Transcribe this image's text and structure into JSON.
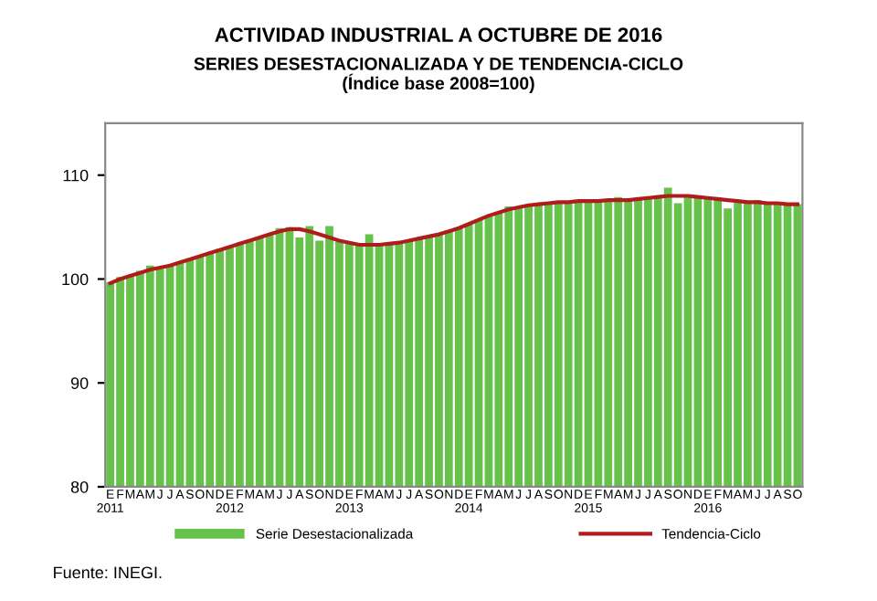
{
  "chart_data": {
    "type": "bar",
    "title": "ACTIVIDAD INDUSTRIAL A OCTUBRE DE 2016",
    "subtitle": "SERIES DESESTACIONALIZADA Y DE TENDENCIA-CICLO\n(Índice base 2008=100)",
    "categories": [
      "E\n2011",
      "F",
      "M",
      "A",
      "M",
      "J",
      "J",
      "A",
      "S",
      "O",
      "N",
      "D",
      "E\n2012",
      "F",
      "M",
      "A",
      "M",
      "J",
      "J",
      "A",
      "S",
      "O",
      "N",
      "D",
      "E\n2013",
      "F",
      "M",
      "A",
      "M",
      "J",
      "J",
      "A",
      "S",
      "O",
      "N",
      "D",
      "E\n2014",
      "F",
      "M",
      "A",
      "M",
      "J",
      "J",
      "A",
      "S",
      "O",
      "N",
      "D",
      "E\n2015",
      "F",
      "M",
      "A",
      "M",
      "J",
      "J",
      "A",
      "S",
      "O",
      "N",
      "D",
      "E\n2016",
      "F",
      "M",
      "A",
      "M",
      "J",
      "J",
      "A",
      "S",
      "O"
    ],
    "series": [
      {
        "name": "Serie Desestacionalizada",
        "color": "#66c24a",
        "values": [
          99.7,
          100.2,
          100.4,
          100.8,
          101.3,
          101.0,
          101.3,
          101.7,
          102.0,
          102.2,
          102.6,
          102.9,
          103.1,
          103.4,
          103.8,
          104.0,
          104.3,
          104.9,
          105.0,
          104.0,
          105.1,
          103.7,
          105.1,
          103.6,
          103.4,
          103.3,
          104.3,
          103.2,
          103.4,
          103.5,
          103.7,
          104.0,
          104.1,
          104.3,
          104.7,
          104.9,
          105.3,
          105.7,
          106.1,
          106.4,
          107.0,
          106.8,
          107.1,
          107.2,
          107.2,
          107.4,
          107.4,
          107.5,
          107.5,
          107.4,
          107.6,
          107.9,
          107.5,
          107.7,
          107.9,
          108.0,
          108.8,
          107.3,
          108.1,
          107.9,
          107.8,
          107.8,
          106.8,
          107.5,
          107.3,
          107.6,
          107.3,
          107.2,
          107.1,
          107.2
        ]
      },
      {
        "name": "Tendencia-Ciclo",
        "type": "line",
        "color": "#b01c1c",
        "values": [
          99.6,
          100.0,
          100.3,
          100.6,
          100.9,
          101.1,
          101.3,
          101.6,
          101.9,
          102.2,
          102.5,
          102.8,
          103.1,
          103.4,
          103.7,
          104.0,
          104.3,
          104.6,
          104.8,
          104.8,
          104.6,
          104.3,
          104.0,
          103.7,
          103.5,
          103.3,
          103.3,
          103.3,
          103.4,
          103.5,
          103.7,
          103.9,
          104.1,
          104.3,
          104.6,
          104.9,
          105.3,
          105.7,
          106.1,
          106.4,
          106.7,
          106.9,
          107.1,
          107.2,
          107.3,
          107.4,
          107.4,
          107.5,
          107.5,
          107.5,
          107.6,
          107.6,
          107.6,
          107.7,
          107.8,
          107.9,
          108.0,
          108.0,
          108.0,
          107.9,
          107.8,
          107.7,
          107.6,
          107.5,
          107.4,
          107.4,
          107.3,
          107.3,
          107.2,
          107.2
        ]
      }
    ],
    "ylim": [
      80,
      115
    ],
    "yticks": [
      80,
      90,
      100,
      110
    ],
    "grid": false,
    "legend": "bottom",
    "annotations": [
      "Fuente: INEGI."
    ]
  }
}
